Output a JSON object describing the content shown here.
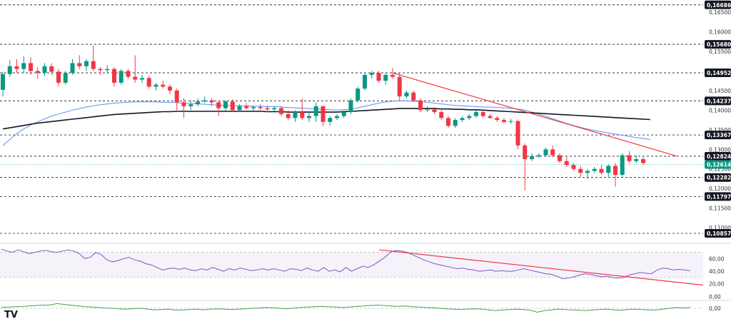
{
  "chart_data": [
    {
      "type": "candlestick",
      "ylim": [
        0.1062,
        0.1681
      ],
      "yticks": [
        "0,16500",
        "0,16000",
        "0,15500",
        "0,14500",
        "0,14000",
        "0,13500",
        "0,13000",
        "0,12500",
        "0,12000",
        "0,11500",
        "0,11000"
      ],
      "ytick_values": [
        0.165,
        0.16,
        0.155,
        0.145,
        0.14,
        0.135,
        0.13,
        0.125,
        0.12,
        0.115,
        0.11
      ],
      "levels": [
        {
          "value": 0.16686,
          "label": "0,16686"
        },
        {
          "value": 0.1568,
          "label": "0,15680"
        },
        {
          "value": 0.14952,
          "label": "0,14952"
        },
        {
          "value": 0.14237,
          "label": "0,14237"
        },
        {
          "value": 0.13367,
          "label": "0,13367"
        },
        {
          "value": 0.12824,
          "label": "0,12824"
        },
        {
          "value": 0.12282,
          "label": "0,12282"
        },
        {
          "value": 0.11797,
          "label": "0,11797"
        },
        {
          "value": 0.10857,
          "label": "0,10857"
        }
      ],
      "current_price": {
        "value": 0.12614,
        "label": "0,12614"
      },
      "candles": [
        [
          0.1452,
          0.1498,
          0.1435,
          0.1492
        ],
        [
          0.1492,
          0.1528,
          0.1485,
          0.1512
        ],
        [
          0.1512,
          0.153,
          0.1495,
          0.1505
        ],
        [
          0.1505,
          0.1538,
          0.1495,
          0.152
        ],
        [
          0.152,
          0.1535,
          0.149,
          0.15
        ],
        [
          0.15,
          0.151,
          0.148,
          0.1495
        ],
        [
          0.1495,
          0.152,
          0.1488,
          0.1512
        ],
        [
          0.1512,
          0.152,
          0.149,
          0.1498
        ],
        [
          0.1498,
          0.1505,
          0.146,
          0.147
        ],
        [
          0.147,
          0.15,
          0.1465,
          0.1495
        ],
        [
          0.1495,
          0.153,
          0.149,
          0.152
        ],
        [
          0.152,
          0.154,
          0.1505,
          0.1512
        ],
        [
          0.1512,
          0.153,
          0.15,
          0.1525
        ],
        [
          0.1525,
          0.1565,
          0.15,
          0.1505
        ],
        [
          0.1505,
          0.151,
          0.149,
          0.1502
        ],
        [
          0.1502,
          0.1515,
          0.1495,
          0.1505
        ],
        [
          0.1505,
          0.151,
          0.146,
          0.147
        ],
        [
          0.147,
          0.1505,
          0.1465,
          0.15
        ],
        [
          0.15,
          0.1505,
          0.148,
          0.1485
        ],
        [
          0.1485,
          0.154,
          0.147,
          0.1478
        ],
        [
          0.1478,
          0.149,
          0.147,
          0.1482
        ],
        [
          0.1482,
          0.1488,
          0.1455,
          0.146
        ],
        [
          0.146,
          0.147,
          0.145,
          0.1465
        ],
        [
          0.1465,
          0.1475,
          0.1455,
          0.146
        ],
        [
          0.146,
          0.1465,
          0.144,
          0.145
        ],
        [
          0.145,
          0.1455,
          0.14,
          0.142
        ],
        [
          0.142,
          0.143,
          0.138,
          0.141
        ],
        [
          0.141,
          0.1425,
          0.14,
          0.1415
        ],
        [
          0.1415,
          0.143,
          0.141,
          0.1422
        ],
        [
          0.1422,
          0.1435,
          0.1418,
          0.1425
        ],
        [
          0.1425,
          0.143,
          0.141,
          0.142
        ],
        [
          0.142,
          0.1425,
          0.1385,
          0.1405
        ],
        [
          0.1405,
          0.1425,
          0.1398,
          0.1422
        ],
        [
          0.1422,
          0.1428,
          0.1395,
          0.14
        ],
        [
          0.14,
          0.1415,
          0.1395,
          0.141
        ],
        [
          0.141,
          0.1418,
          0.1402,
          0.1405
        ],
        [
          0.1405,
          0.1412,
          0.1398,
          0.1408
        ],
        [
          0.1408,
          0.1415,
          0.14,
          0.1405
        ],
        [
          0.1405,
          0.1412,
          0.1395,
          0.1402
        ],
        [
          0.1402,
          0.141,
          0.1398,
          0.1405
        ],
        [
          0.1405,
          0.141,
          0.1385,
          0.139
        ],
        [
          0.139,
          0.14,
          0.1375,
          0.138
        ],
        [
          0.138,
          0.14,
          0.137,
          0.1395
        ],
        [
          0.1395,
          0.143,
          0.1375,
          0.138
        ],
        [
          0.138,
          0.1395,
          0.137,
          0.1385
        ],
        [
          0.1385,
          0.142,
          0.137,
          0.141
        ],
        [
          0.141,
          0.1412,
          0.136,
          0.137
        ],
        [
          0.137,
          0.1385,
          0.136,
          0.138
        ],
        [
          0.138,
          0.139,
          0.1375,
          0.1385
        ],
        [
          0.1385,
          0.14,
          0.138,
          0.1395
        ],
        [
          0.1395,
          0.143,
          0.139,
          0.1425
        ],
        [
          0.1425,
          0.146,
          0.142,
          0.1455
        ],
        [
          0.1455,
          0.1495,
          0.145,
          0.149
        ],
        [
          0.149,
          0.15,
          0.148,
          0.1495
        ],
        [
          0.1495,
          0.15,
          0.147,
          0.1475
        ],
        [
          0.1475,
          0.1495,
          0.1465,
          0.149
        ],
        [
          0.149,
          0.1508,
          0.148,
          0.1485
        ],
        [
          0.1485,
          0.1495,
          0.1425,
          0.1435
        ],
        [
          0.1435,
          0.145,
          0.143,
          0.1445
        ],
        [
          0.1445,
          0.145,
          0.142,
          0.1425
        ],
        [
          0.1425,
          0.143,
          0.1395,
          0.14
        ],
        [
          0.14,
          0.141,
          0.1395,
          0.1402
        ],
        [
          0.1402,
          0.1408,
          0.139,
          0.1395
        ],
        [
          0.1395,
          0.14,
          0.1375,
          0.138
        ],
        [
          0.138,
          0.1385,
          0.1355,
          0.136
        ],
        [
          0.136,
          0.138,
          0.1355,
          0.1375
        ],
        [
          0.1375,
          0.1385,
          0.137,
          0.138
        ],
        [
          0.138,
          0.139,
          0.1375,
          0.1385
        ],
        [
          0.1385,
          0.14,
          0.138,
          0.1395
        ],
        [
          0.1395,
          0.1398,
          0.138,
          0.1385
        ],
        [
          0.1385,
          0.139,
          0.1378,
          0.138
        ],
        [
          0.138,
          0.1385,
          0.137,
          0.1375
        ],
        [
          0.1375,
          0.138,
          0.1365,
          0.137
        ],
        [
          0.137,
          0.1378,
          0.1365,
          0.1372
        ],
        [
          0.1372,
          0.1376,
          0.13,
          0.131
        ],
        [
          0.131,
          0.1315,
          0.1195,
          0.1275
        ],
        [
          0.1275,
          0.129,
          0.127,
          0.1282
        ],
        [
          0.1282,
          0.129,
          0.1278,
          0.1285
        ],
        [
          0.1285,
          0.1305,
          0.128,
          0.13
        ],
        [
          0.13,
          0.131,
          0.128,
          0.1285
        ],
        [
          0.1285,
          0.129,
          0.1265,
          0.127
        ],
        [
          0.127,
          0.128,
          0.1255,
          0.126
        ],
        [
          0.126,
          0.1265,
          0.1245,
          0.125
        ],
        [
          0.125,
          0.1258,
          0.123,
          0.124
        ],
        [
          0.124,
          0.125,
          0.1225,
          0.1245
        ],
        [
          0.1245,
          0.1255,
          0.124,
          0.125
        ],
        [
          0.125,
          0.126,
          0.1235,
          0.124
        ],
        [
          0.124,
          0.1262,
          0.123,
          0.1258
        ],
        [
          0.1258,
          0.1265,
          0.1205,
          0.1235
        ],
        [
          0.1235,
          0.129,
          0.123,
          0.1285
        ],
        [
          0.1285,
          0.1295,
          0.1265,
          0.127
        ],
        [
          0.127,
          0.1285,
          0.1265,
          0.1275
        ],
        [
          0.1275,
          0.128,
          0.126,
          0.1265
        ]
      ],
      "ma_black": [
        0.1352,
        0.1355,
        0.1358,
        0.1361,
        0.1364,
        0.1367,
        0.1369,
        0.1371,
        0.1373,
        0.1375,
        0.1377,
        0.1379,
        0.1381,
        0.1383,
        0.1385,
        0.1387,
        0.1389,
        0.139,
        0.1391,
        0.1392,
        0.1393,
        0.1394,
        0.1395,
        0.1396,
        0.1396,
        0.1397,
        0.1397,
        0.1397,
        0.1397,
        0.1397,
        0.1397,
        0.1397,
        0.1397,
        0.1397,
        0.1397,
        0.1397,
        0.1397,
        0.1397,
        0.1396,
        0.1396,
        0.1396,
        0.1395,
        0.1395,
        0.1395,
        0.1395,
        0.1395,
        0.1395,
        0.1395,
        0.1395,
        0.1396,
        0.1397,
        0.1398,
        0.1399,
        0.14,
        0.1401,
        0.1402,
        0.1403,
        0.1404,
        0.1404,
        0.1404,
        0.1404,
        0.1404,
        0.1404,
        0.1403,
        0.1403,
        0.1402,
        0.1402,
        0.1401,
        0.1401,
        0.14,
        0.1399,
        0.1398,
        0.1397,
        0.1396,
        0.1395,
        0.1394,
        0.1393,
        0.1392,
        0.1391,
        0.139,
        0.1389,
        0.1388,
        0.1387,
        0.1386,
        0.1385,
        0.1384,
        0.1383,
        0.1382,
        0.1381,
        0.138,
        0.1379,
        0.1378,
        0.1377,
        0.1376
      ],
      "ma_blue": [
        0.131,
        0.1325,
        0.134,
        0.1352,
        0.1362,
        0.137,
        0.1378,
        0.1385,
        0.139,
        0.1395,
        0.14,
        0.1404,
        0.1408,
        0.1411,
        0.1414,
        0.1416,
        0.1418,
        0.1419,
        0.142,
        0.1421,
        0.1421,
        0.1421,
        0.1421,
        0.142,
        0.142,
        0.1419,
        0.1418,
        0.1417,
        0.1416,
        0.1415,
        0.1414,
        0.1413,
        0.1412,
        0.1412,
        0.1411,
        0.1411,
        0.141,
        0.141,
        0.1409,
        0.1409,
        0.1408,
        0.1407,
        0.1406,
        0.1405,
        0.1404,
        0.1403,
        0.1402,
        0.1401,
        0.14,
        0.1401,
        0.1403,
        0.1406,
        0.141,
        0.1414,
        0.1418,
        0.1421,
        0.1423,
        0.1424,
        0.1424,
        0.1423,
        0.1422,
        0.142,
        0.1418,
        0.1416,
        0.1414,
        0.1412,
        0.1411,
        0.141,
        0.1409,
        0.1408,
        0.1408,
        0.1407,
        0.1406,
        0.1405,
        0.1403,
        0.14,
        0.1395,
        0.139,
        0.1384,
        0.1378,
        0.1372,
        0.1366,
        0.1361,
        0.1356,
        0.1352,
        0.1348,
        0.1345,
        0.1342,
        0.1339,
        0.1336,
        0.1333,
        0.133,
        0.1328,
        0.1325
      ],
      "trendline_red": [
        [
          56,
          0.1495
        ],
        [
          97,
          0.1282
        ]
      ]
    },
    {
      "type": "line",
      "ylim": [
        -3,
        82
      ],
      "yticks": [
        "60,00",
        "40,00",
        "20,00",
        "0,00"
      ],
      "ytick_values": [
        60,
        40,
        20,
        0
      ],
      "band": [
        30,
        70
      ],
      "values": [
        75,
        72,
        70,
        74,
        71,
        68,
        70,
        72,
        73,
        71,
        70,
        72,
        74,
        72,
        68,
        60,
        62,
        70,
        66,
        58,
        55,
        57,
        60,
        62,
        58,
        56,
        52,
        50,
        46,
        42,
        44,
        45,
        43,
        45,
        42,
        41,
        44,
        42,
        46,
        43,
        40,
        44,
        42,
        45,
        43,
        41,
        42,
        44,
        42,
        44,
        42,
        40,
        44,
        43,
        41,
        45,
        42,
        40,
        46,
        40,
        42,
        39,
        46,
        40,
        44,
        48,
        46,
        50,
        56,
        62,
        70,
        73,
        72,
        70,
        66,
        62,
        58,
        55,
        52,
        50,
        48,
        46,
        44,
        45,
        43,
        42,
        40,
        41,
        42,
        40,
        41,
        40,
        40,
        42,
        44,
        42,
        40,
        38,
        36,
        35,
        32,
        28,
        29,
        31,
        34,
        36,
        35,
        33,
        31,
        32,
        30,
        29,
        30,
        34,
        36,
        38,
        37,
        36,
        42,
        45,
        44,
        42,
        43,
        42,
        41
      ],
      "trendline_red": [
        [
          68,
          74
        ],
        [
          124,
          18
        ]
      ]
    },
    {
      "type": "line",
      "yticks": [
        "0,00"
      ],
      "values": [
        0.5,
        0.8,
        1.0,
        1.2,
        1.5,
        1.8,
        2.0,
        2.2,
        3.0,
        2.5,
        2.0,
        1.5,
        1.0,
        0.8,
        0.5,
        0.2,
        0.0,
        -0.3,
        -0.5,
        -0.2,
        0.0,
        -0.5,
        -1.0,
        -0.8,
        -0.5,
        -1.2,
        -1.0,
        -0.8,
        -0.5,
        -1.0,
        -0.6,
        -0.3,
        -0.5,
        -0.8,
        -0.5,
        -0.3,
        0.0,
        0.2,
        0.5,
        0.3,
        0.0,
        -0.3,
        0.2,
        0.5,
        0.8,
        1.0,
        1.2,
        1.0,
        0.8,
        0.5,
        0.8,
        1.2,
        1.5,
        1.8,
        2.0,
        1.8,
        1.5,
        1.2,
        1.5,
        1.0,
        0.8,
        0.5,
        0.3,
        0.0,
        -0.3,
        -0.5,
        -0.8,
        -0.5,
        -0.3,
        -0.5,
        -1.0,
        -1.5,
        -1.0,
        -0.8,
        -0.5,
        -0.8,
        -1.2,
        -2.5,
        -1.5,
        -1.0,
        -0.5,
        -0.8,
        -1.0,
        -1.2,
        -1.5,
        -1.0,
        -0.8,
        -0.5,
        -1.0,
        -1.2,
        -0.8,
        -0.5,
        -0.8,
        -1.0,
        -1.2,
        -0.5,
        0.0,
        0.5,
        0.2,
        0.5
      ]
    }
  ],
  "colors": {
    "up": "#089981",
    "down": "#f23645",
    "ma_black": "#131722",
    "ma_blue": "#5b8ff9",
    "trend": "#f23645",
    "rsi": "#7e57c2",
    "rsi_band": "#7e57c2",
    "osc": "#43a047",
    "level_tag": "#131722",
    "price_tag": "#089981"
  },
  "logo": {
    "text": "TV",
    "icon": "tradingview-logo-icon"
  }
}
